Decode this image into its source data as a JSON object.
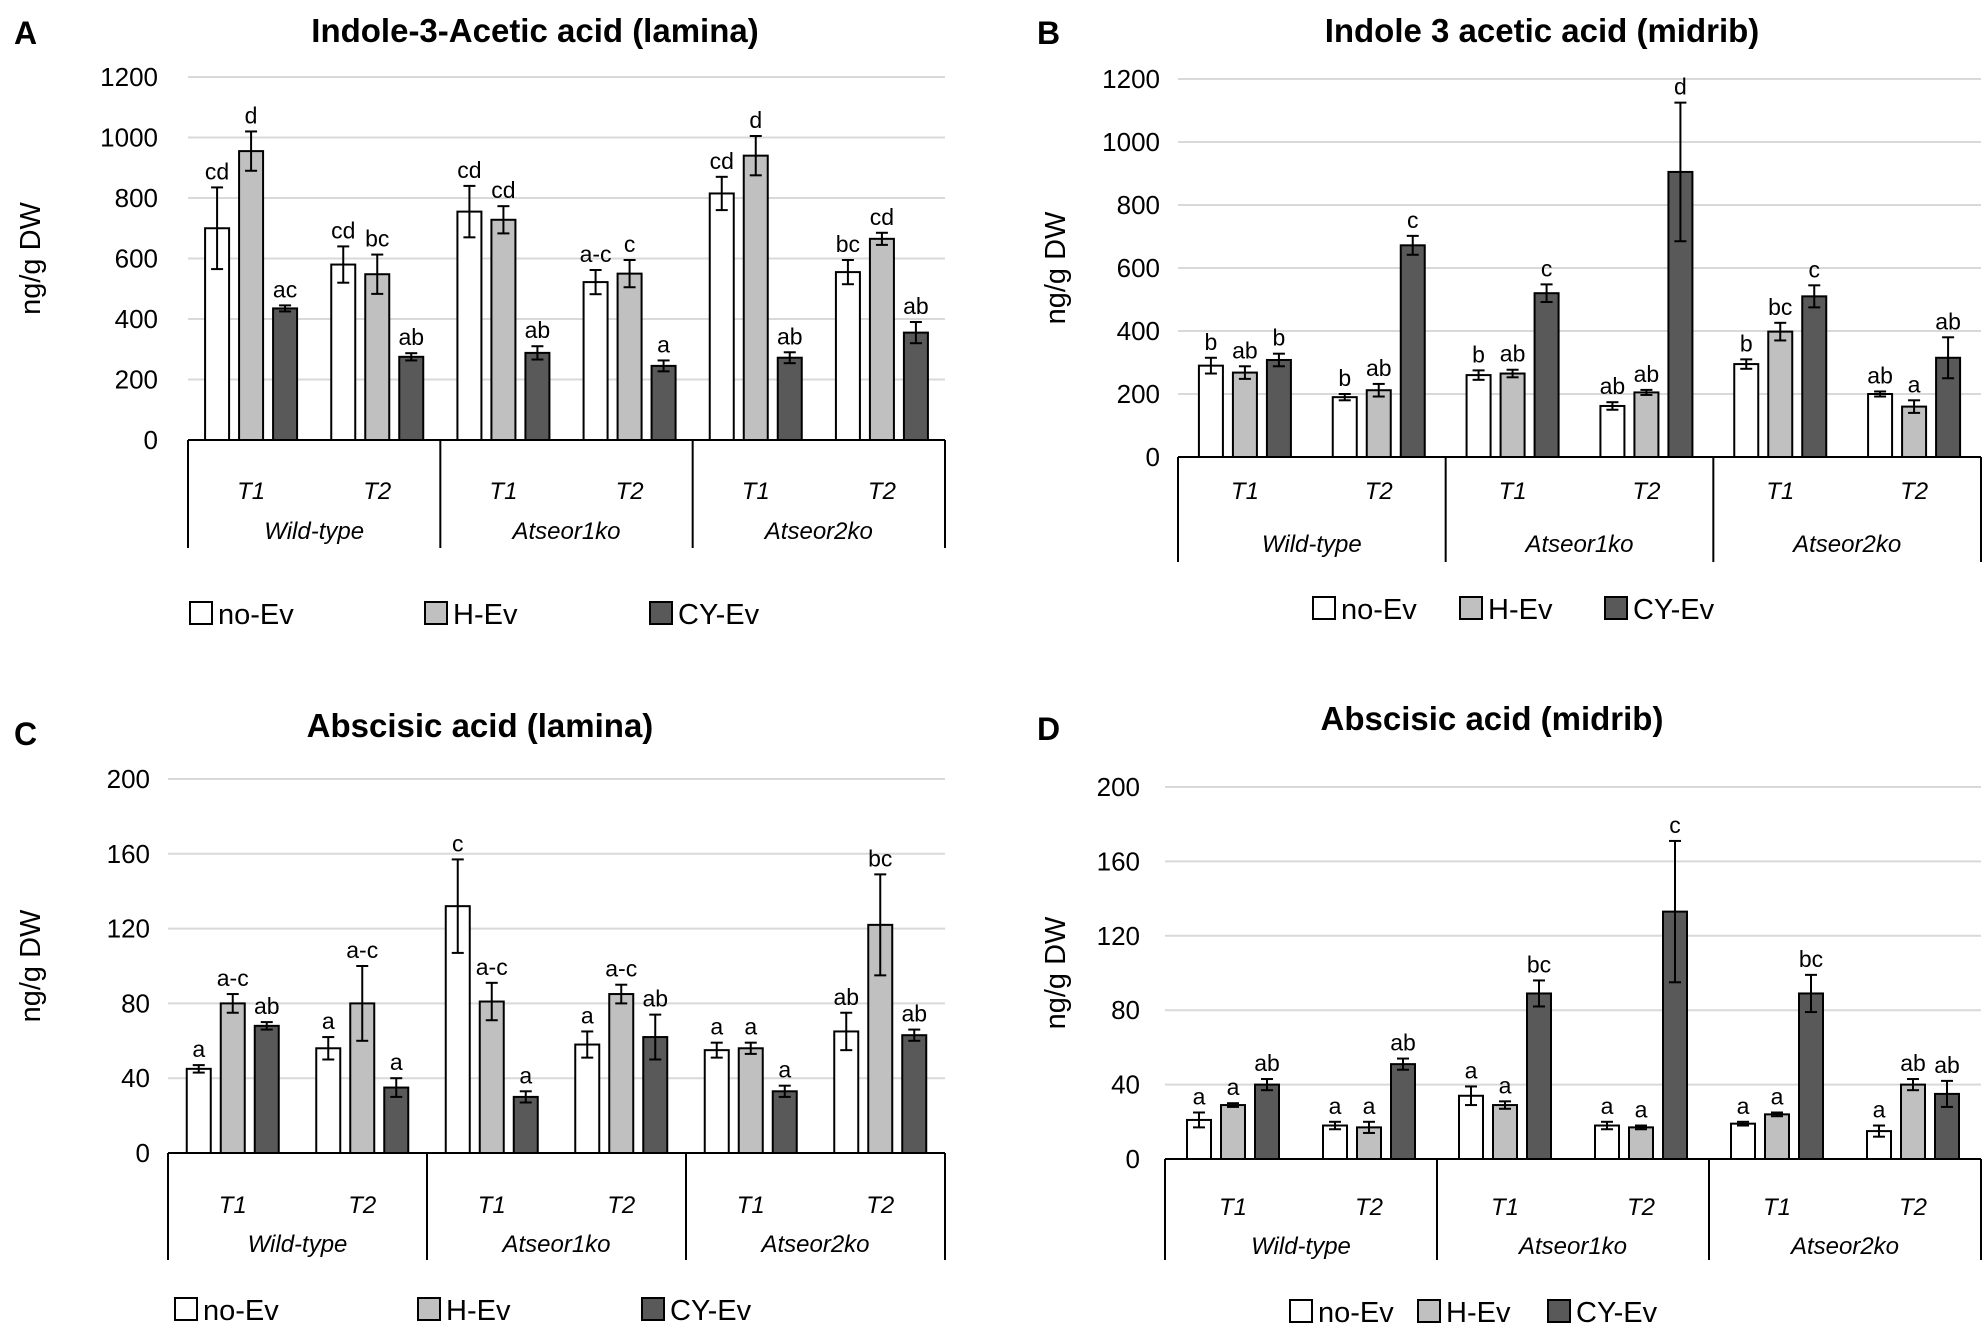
{
  "colors": {
    "no_ev": "#ffffff",
    "h_ev": "#c0c0c0",
    "cy_ev": "#595959",
    "bar_stroke": "#000000",
    "grid": "#d9d9d9",
    "axis_text": "#000000"
  },
  "legend": {
    "no_ev": "no-Ev",
    "h_ev": "H-Ev",
    "cy_ev": "CY-Ev"
  },
  "chart_data": [
    {
      "panel_letter": "A",
      "type": "bar",
      "title": "Indole-3-Acetic acid (lamina)",
      "ylabel": "ng/g DW",
      "ylim": [
        0,
        1200
      ],
      "yticks": [
        0,
        200,
        400,
        600,
        800,
        1000,
        1200
      ],
      "groups": [
        "Wild-type",
        "Atseor1ko",
        "Atseor2ko"
      ],
      "timepoints": [
        "T1",
        "T2"
      ],
      "series_names": [
        "no-Ev",
        "H-Ev",
        "CY-Ev"
      ],
      "values": [
        [
          [
            700,
            955,
            435
          ],
          [
            580,
            548,
            275
          ]
        ],
        [
          [
            755,
            728,
            288
          ],
          [
            522,
            550,
            245
          ]
        ],
        [
          [
            815,
            940,
            272
          ],
          [
            555,
            665,
            355
          ]
        ]
      ],
      "errors": [
        [
          [
            135,
            65,
            10
          ],
          [
            60,
            65,
            12
          ]
        ],
        [
          [
            85,
            45,
            22
          ],
          [
            40,
            45,
            18
          ]
        ],
        [
          [
            55,
            65,
            18
          ],
          [
            40,
            20,
            35
          ]
        ]
      ],
      "labels": [
        [
          [
            "cd",
            "d",
            "ac"
          ],
          [
            "cd",
            "bc",
            "ab"
          ]
        ],
        [
          [
            "cd",
            "cd",
            "ab"
          ],
          [
            "a-c",
            "c",
            "a"
          ]
        ],
        [
          [
            "cd",
            "d",
            "ab"
          ],
          [
            "bc",
            "cd",
            "ab"
          ]
        ]
      ]
    },
    {
      "panel_letter": "B",
      "type": "bar",
      "title": "Indole 3 acetic acid (midrib)",
      "ylabel": "ng/g DW",
      "ylim": [
        0,
        1200
      ],
      "yticks": [
        0,
        200,
        400,
        600,
        800,
        1000,
        1200
      ],
      "groups": [
        "Wild-type",
        "Atseor1ko",
        "Atseor2ko"
      ],
      "timepoints": [
        "T1",
        "T2"
      ],
      "series_names": [
        "no-Ev",
        "H-Ev",
        "CY-Ev"
      ],
      "values": [
        [
          [
            290,
            268,
            308
          ],
          [
            190,
            212,
            672
          ]
        ],
        [
          [
            260,
            265,
            520
          ],
          [
            162,
            205,
            905
          ]
        ],
        [
          [
            295,
            398,
            510
          ],
          [
            200,
            160,
            315
          ]
        ]
      ],
      "errors": [
        [
          [
            25,
            20,
            20
          ],
          [
            10,
            20,
            30
          ]
        ],
        [
          [
            15,
            12,
            28
          ],
          [
            12,
            8,
            220
          ]
        ],
        [
          [
            15,
            28,
            35
          ],
          [
            8,
            20,
            65
          ]
        ]
      ],
      "labels": [
        [
          [
            "b",
            "ab",
            "b"
          ],
          [
            "b",
            "ab",
            "c"
          ]
        ],
        [
          [
            "b",
            "ab",
            "c"
          ],
          [
            "ab",
            "ab",
            "d"
          ]
        ],
        [
          [
            "b",
            "bc",
            "c"
          ],
          [
            "ab",
            "a",
            "ab"
          ]
        ]
      ]
    },
    {
      "panel_letter": "C",
      "type": "bar",
      "title": "Abscisic acid (lamina)",
      "ylabel": "ng/g DW",
      "ylim": [
        0,
        200
      ],
      "yticks": [
        0,
        40,
        80,
        120,
        160,
        200
      ],
      "groups": [
        "Wild-type",
        "Atseor1ko",
        "Atseor2ko"
      ],
      "timepoints": [
        "T1",
        "T2"
      ],
      "series_names": [
        "no-Ev",
        "H-Ev",
        "CY-Ev"
      ],
      "values": [
        [
          [
            45,
            80,
            68
          ],
          [
            56,
            80,
            35
          ]
        ],
        [
          [
            132,
            81,
            30
          ],
          [
            58,
            85,
            62
          ]
        ],
        [
          [
            55,
            56,
            33
          ],
          [
            65,
            122,
            63
          ]
        ]
      ],
      "errors": [
        [
          [
            2,
            5,
            2
          ],
          [
            6,
            20,
            5
          ]
        ],
        [
          [
            25,
            10,
            3
          ],
          [
            7,
            5,
            12
          ]
        ],
        [
          [
            4,
            3,
            3
          ],
          [
            10,
            27,
            3
          ]
        ]
      ],
      "labels": [
        [
          [
            "a",
            "a-c",
            "ab"
          ],
          [
            "a",
            "a-c",
            "a"
          ]
        ],
        [
          [
            "c",
            "a-c",
            "a"
          ],
          [
            "a",
            "a-c",
            "ab"
          ]
        ],
        [
          [
            "a",
            "a",
            "a"
          ],
          [
            "ab",
            "bc",
            "ab"
          ]
        ]
      ]
    },
    {
      "panel_letter": "D",
      "type": "bar",
      "title": "Abscisic acid (midrib)",
      "ylabel": "ng/g DW",
      "ylim": [
        0,
        200
      ],
      "yticks": [
        0,
        40,
        80,
        120,
        160,
        200
      ],
      "groups": [
        "Wild-type",
        "Atseor1ko",
        "Atseor2ko"
      ],
      "timepoints": [
        "T1",
        "T2"
      ],
      "series_names": [
        "no-Ev",
        "H-Ev",
        "CY-Ev"
      ],
      "values": [
        [
          [
            21,
            29,
            40
          ],
          [
            18,
            17,
            51
          ]
        ],
        [
          [
            34,
            29,
            89
          ],
          [
            18,
            17,
            133
          ]
        ],
        [
          [
            19,
            24,
            89
          ],
          [
            15,
            40,
            35
          ]
        ]
      ],
      "errors": [
        [
          [
            4,
            1,
            3
          ],
          [
            2,
            3,
            3
          ]
        ],
        [
          [
            5,
            2,
            7
          ],
          [
            2,
            1,
            38
          ]
        ],
        [
          [
            1,
            1,
            10
          ],
          [
            3,
            3,
            7
          ]
        ]
      ],
      "labels": [
        [
          [
            "a",
            "a",
            "ab"
          ],
          [
            "a",
            "a",
            "ab"
          ]
        ],
        [
          [
            "a",
            "a",
            "bc"
          ],
          [
            "a",
            "a",
            "c"
          ]
        ],
        [
          [
            "a",
            "a",
            "bc"
          ],
          [
            "a",
            "ab",
            "ab"
          ]
        ]
      ]
    }
  ]
}
